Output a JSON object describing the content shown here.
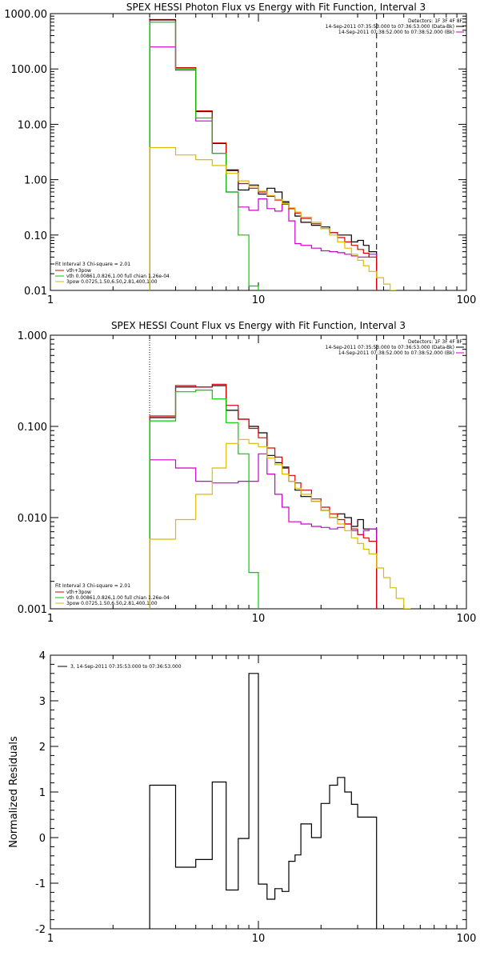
{
  "colors": {
    "data": "#000000",
    "background_bk": "#cc00cc",
    "sum": "#dd0000",
    "thermal": "#00cc00",
    "power_law": "#ddbb00",
    "frame": "#000000"
  },
  "chart_data": [
    {
      "type": "line",
      "title": "SPEX HESSI Photon Flux vs Energy with Fit Function, Interval 3",
      "xlabel": "",
      "ylabel": "",
      "xscale": "log",
      "yscale": "log",
      "xlim": [
        1,
        100
      ],
      "ylim": [
        0.01,
        1000
      ],
      "xtick_labels": [
        "1",
        "10",
        "100"
      ],
      "ytick_labels": [
        "0.01",
        "0.10",
        "1.00",
        "10.00",
        "100.00",
        "1000.00"
      ],
      "grid": false,
      "vlines": [
        {
          "x": 3,
          "style": "dotted"
        },
        {
          "x": 37,
          "style": "dashed"
        }
      ],
      "legend_topright": {
        "detectors": "Detectors: 1F 3F 4F 8F",
        "entries": [
          {
            "text": "14-Sep-2011 07:35:53.000 to 07:36:53.000 (Data-Bk)",
            "color_key": "data"
          },
          {
            "text": "14-Sep-2011 07:38:52.000 to 07:38:52.000 (Bk)",
            "color_key": "background_bk"
          }
        ]
      },
      "legend_bottomleft": {
        "header": "Fit Interval 3   Chi-square = 2.01",
        "entries": [
          {
            "text": "vth+3pow",
            "color_key": "sum"
          },
          {
            "text": "vth 0.00861,0.826,1.00  full chian 1.26e-04",
            "color_key": "thermal"
          },
          {
            "text": "3pow 0.0725,1.50,6.50,2.81,400,1.00",
            "color_key": "power_law"
          }
        ]
      },
      "series": [
        {
          "name": "Data-Bk",
          "color_key": "data",
          "bin_edges": [
            3,
            4,
            5,
            6,
            7,
            8,
            9,
            10,
            11,
            12,
            13,
            14,
            15,
            16,
            18,
            20,
            22,
            24,
            26,
            28,
            30,
            32,
            34,
            37
          ],
          "values": [
            780,
            105,
            17,
            4.5,
            1.5,
            0.65,
            0.8,
            0.55,
            0.7,
            0.6,
            0.4,
            0.3,
            0.22,
            0.17,
            0.15,
            0.14,
            0.11,
            0.1,
            0.1,
            0.075,
            0.08,
            0.065,
            0.05
          ]
        },
        {
          "name": "Bk",
          "color_key": "background_bk",
          "bin_edges": [
            3,
            4,
            5,
            6,
            7,
            8,
            9,
            10,
            11,
            12,
            13,
            14,
            15,
            16,
            18,
            20,
            22,
            24,
            26,
            28,
            30,
            32,
            34,
            37
          ],
          "values": [
            250,
            95,
            11.5,
            3.0,
            0.6,
            0.32,
            0.28,
            0.45,
            0.3,
            0.27,
            0.38,
            0.18,
            0.07,
            0.065,
            0.058,
            0.052,
            0.05,
            0.048,
            0.045,
            0.042,
            0.04,
            0.04,
            0.045
          ]
        },
        {
          "name": "vth+3pow",
          "color_key": "sum",
          "bin_edges": [
            3,
            4,
            5,
            6,
            7,
            8,
            9,
            10,
            11,
            12,
            13,
            14,
            15,
            16,
            18,
            20,
            22,
            24,
            26,
            28,
            30,
            32,
            34,
            37
          ],
          "values": [
            760,
            105,
            17.5,
            4.6,
            1.45,
            0.85,
            0.7,
            0.6,
            0.5,
            0.43,
            0.36,
            0.3,
            0.25,
            0.2,
            0.16,
            0.13,
            0.11,
            0.09,
            0.075,
            0.065,
            0.055,
            0.047,
            0.04
          ]
        },
        {
          "name": "vth",
          "color_key": "thermal",
          "bin_edges": [
            3,
            4,
            5,
            6,
            7,
            8,
            9,
            10
          ],
          "values": [
            700,
            100,
            13.0,
            3.0,
            0.6,
            0.1,
            0.012
          ]
        },
        {
          "name": "3pow",
          "color_key": "power_law",
          "bin_edges": [
            3,
            4,
            5,
            6,
            7,
            8,
            9,
            10,
            11,
            12,
            13,
            14,
            15,
            16,
            18,
            20,
            22,
            24,
            26,
            28,
            30,
            32,
            34,
            37,
            40,
            43,
            46
          ],
          "values": [
            3.8,
            2.8,
            2.3,
            1.8,
            1.3,
            0.95,
            0.75,
            0.62,
            0.52,
            0.44,
            0.37,
            0.31,
            0.26,
            0.21,
            0.17,
            0.13,
            0.1,
            0.075,
            0.058,
            0.045,
            0.035,
            0.028,
            0.022,
            0.017,
            0.013,
            0.01
          ]
        }
      ]
    },
    {
      "type": "line",
      "title": "SPEX HESSI Count Flux vs Energy with Fit Function, Interval 3",
      "xlabel": "",
      "ylabel": "",
      "xscale": "log",
      "yscale": "log",
      "xlim": [
        1,
        100
      ],
      "ylim": [
        0.001,
        1
      ],
      "xtick_labels": [
        "1",
        "10",
        "100"
      ],
      "ytick_labels": [
        "0.001",
        "0.010",
        "0.100",
        "1.000"
      ],
      "grid": false,
      "vlines": [
        {
          "x": 3,
          "style": "dotted"
        },
        {
          "x": 37,
          "style": "dashed"
        }
      ],
      "legend_topright": {
        "detectors": "Detectors: 1F 3F 4F 8F",
        "entries": [
          {
            "text": "14-Sep-2011 07:35:53.000 to 07:36:53.000 (Data-Bk)",
            "color_key": "data"
          },
          {
            "text": "14-Sep-2011 07:38:52.000 to 07:38:52.000 (Bk)",
            "color_key": "background_bk"
          }
        ]
      },
      "legend_bottomleft": {
        "header": "Fit Interval 3   Chi-square = 2.01",
        "entries": [
          {
            "text": "vth+3pow",
            "color_key": "sum"
          },
          {
            "text": "vth 0.00861,0.826,1.00  full chian 1.26e-04",
            "color_key": "thermal"
          },
          {
            "text": "3pow 0.0725,1.50,6.50,2.81,400,1.00",
            "color_key": "power_law"
          }
        ]
      },
      "series": [
        {
          "name": "Data-Bk",
          "color_key": "data",
          "bin_edges": [
            3,
            4,
            5,
            6,
            7,
            8,
            9,
            10,
            11,
            12,
            13,
            14,
            15,
            16,
            18,
            20,
            22,
            24,
            26,
            28,
            30,
            32,
            34,
            37
          ],
          "values": [
            0.125,
            0.27,
            0.27,
            0.28,
            0.15,
            0.12,
            0.1,
            0.085,
            0.048,
            0.04,
            0.035,
            0.025,
            0.02,
            0.017,
            0.015,
            0.012,
            0.01,
            0.011,
            0.01,
            0.008,
            0.0095,
            0.0075,
            0.0075
          ]
        },
        {
          "name": "Bk",
          "color_key": "background_bk",
          "bin_edges": [
            3,
            4,
            5,
            6,
            7,
            8,
            9,
            10,
            11,
            12,
            13,
            14,
            15,
            16,
            18,
            20,
            22,
            24,
            26,
            28,
            30,
            32,
            34,
            37
          ],
          "values": [
            0.043,
            0.035,
            0.025,
            0.024,
            0.024,
            0.025,
            0.025,
            0.05,
            0.03,
            0.018,
            0.013,
            0.009,
            0.009,
            0.0085,
            0.008,
            0.0078,
            0.0075,
            0.0078,
            0.0085,
            0.0072,
            0.0065,
            0.0072,
            0.0075
          ]
        },
        {
          "name": "vth+3pow",
          "color_key": "sum",
          "bin_edges": [
            3,
            4,
            5,
            6,
            7,
            8,
            9,
            10,
            11,
            12,
            13,
            14,
            15,
            16,
            18,
            20,
            22,
            24,
            26,
            28,
            30,
            32,
            34,
            37
          ],
          "values": [
            0.13,
            0.28,
            0.27,
            0.29,
            0.17,
            0.12,
            0.095,
            0.075,
            0.058,
            0.046,
            0.036,
            0.029,
            0.024,
            0.02,
            0.016,
            0.013,
            0.011,
            0.0095,
            0.0085,
            0.0075,
            0.0065,
            0.006,
            0.0055
          ]
        },
        {
          "name": "vth",
          "color_key": "thermal",
          "bin_edges": [
            3,
            4,
            5,
            6,
            7,
            8,
            9,
            10
          ],
          "values": [
            0.115,
            0.24,
            0.25,
            0.2,
            0.11,
            0.05,
            0.0025
          ]
        },
        {
          "name": "3pow",
          "color_key": "power_law",
          "bin_edges": [
            3,
            4,
            5,
            6,
            7,
            8,
            9,
            10,
            11,
            12,
            13,
            14,
            15,
            16,
            18,
            20,
            22,
            24,
            26,
            28,
            30,
            32,
            34,
            37,
            40,
            43,
            46,
            50,
            54
          ],
          "values": [
            0.0058,
            0.0095,
            0.018,
            0.035,
            0.065,
            0.072,
            0.065,
            0.06,
            0.045,
            0.038,
            0.03,
            0.025,
            0.021,
            0.018,
            0.015,
            0.012,
            0.01,
            0.0085,
            0.0072,
            0.006,
            0.0052,
            0.0045,
            0.004,
            0.0028,
            0.0022,
            0.0017,
            0.0013,
            0.001
          ]
        }
      ]
    },
    {
      "type": "line",
      "title": "",
      "xlabel": "",
      "ylabel": "Normalized Residuals",
      "xscale": "log",
      "yscale": "linear",
      "xlim": [
        1,
        100
      ],
      "ylim": [
        -2,
        4
      ],
      "xtick_labels": [
        "1",
        "10",
        "100"
      ],
      "ytick_labels": [
        "-2",
        "-1",
        "0",
        "1",
        "2",
        "3",
        "4"
      ],
      "grid": false,
      "legend_topleft": {
        "entries": [
          {
            "text": "3, 14-Sep-2011 07:35:53.000 to 07:36:53.000",
            "color_key": "data"
          }
        ]
      },
      "series": [
        {
          "name": "3, 14-Sep-2011 07:35:53.000 to 07:36:53.000",
          "color_key": "data",
          "bin_edges": [
            3,
            4,
            5,
            6,
            7,
            8,
            9,
            10,
            11,
            12,
            13,
            14,
            15,
            16,
            18,
            20,
            22,
            24,
            26,
            28,
            30,
            32,
            34,
            37
          ],
          "values": [
            1.15,
            -0.65,
            -0.48,
            1.22,
            -1.15,
            -0.02,
            3.6,
            -1.02,
            -1.35,
            -1.12,
            -1.18,
            -0.52,
            -0.38,
            0.3,
            0.0,
            0.75,
            1.15,
            1.32,
            1.0,
            0.73,
            0.45,
            0.45,
            0.45
          ]
        }
      ]
    }
  ]
}
